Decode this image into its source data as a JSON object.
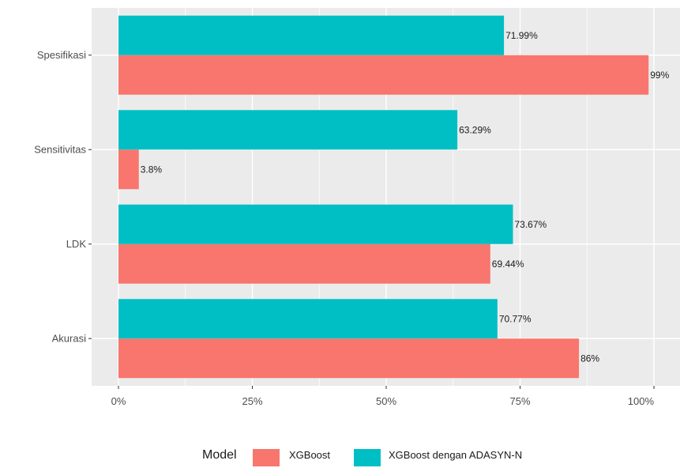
{
  "chart_data": {
    "type": "bar",
    "orientation": "horizontal",
    "categories": [
      "Akurasi",
      "LDK",
      "Sensitivitas",
      "Spesifikasi"
    ],
    "series": [
      {
        "name": "XGBoost",
        "values": [
          86,
          69.44,
          3.8,
          99
        ],
        "labels": [
          "86%",
          "69.44%",
          "3.8%",
          "99%"
        ],
        "color": "#F8766D"
      },
      {
        "name": "XGBoost dengan ADASYN-N",
        "values": [
          70.77,
          73.67,
          63.29,
          71.99
        ],
        "labels": [
          "70.77%",
          "73.67%",
          "63.29%",
          "71.99%"
        ],
        "color": "#00BFC4"
      }
    ],
    "xlim": [
      0,
      100
    ],
    "x_ticks": [
      0,
      25,
      50,
      75,
      100
    ],
    "x_tick_labels": [
      "0%",
      "25%",
      "50%",
      "75%",
      "100%"
    ],
    "grid": true,
    "legend": {
      "title": "Model",
      "position": "bottom"
    },
    "panel_background": "#EBEBEB",
    "grid_color": "#FFFFFF"
  }
}
